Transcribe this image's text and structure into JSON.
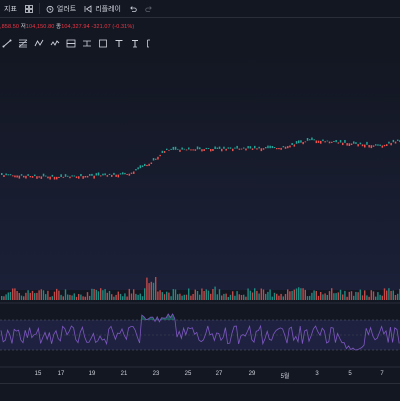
{
  "toolbar": {
    "indicators_label": "지표",
    "alert_label": "얼러트",
    "replay_label": "리플레이"
  },
  "ohlc": {
    "open_prefix": "",
    "open_value": ",858.50",
    "close_prefix": "저",
    "close_value": "104,150.80",
    "last_prefix": "종",
    "last_value": "104,327.94",
    "change_value": "-321.07 (-0.31%)"
  },
  "drawing_tools": [
    {
      "name": "trend-line-tool-icon"
    },
    {
      "name": "fib-tool-icon"
    },
    {
      "name": "pattern-tool-icon"
    },
    {
      "name": "wave-tool-icon"
    },
    {
      "name": "long-position-tool-icon"
    },
    {
      "name": "measure-tool-icon"
    },
    {
      "name": "frame-tool-icon"
    },
    {
      "name": "text-tool-icon"
    },
    {
      "name": "anchored-text-tool-icon"
    },
    {
      "name": "callout-tool-icon"
    }
  ],
  "x_axis": {
    "labels": [
      "15",
      "17",
      "19",
      "21",
      "23",
      "25",
      "27",
      "29",
      "5월",
      "3",
      "5",
      "7"
    ]
  },
  "colors": {
    "up": "#26a69a",
    "down": "#ef5350",
    "rsi_line": "#7e57c2",
    "rsi_band": "#2a2e59",
    "background": "#131722"
  }
}
